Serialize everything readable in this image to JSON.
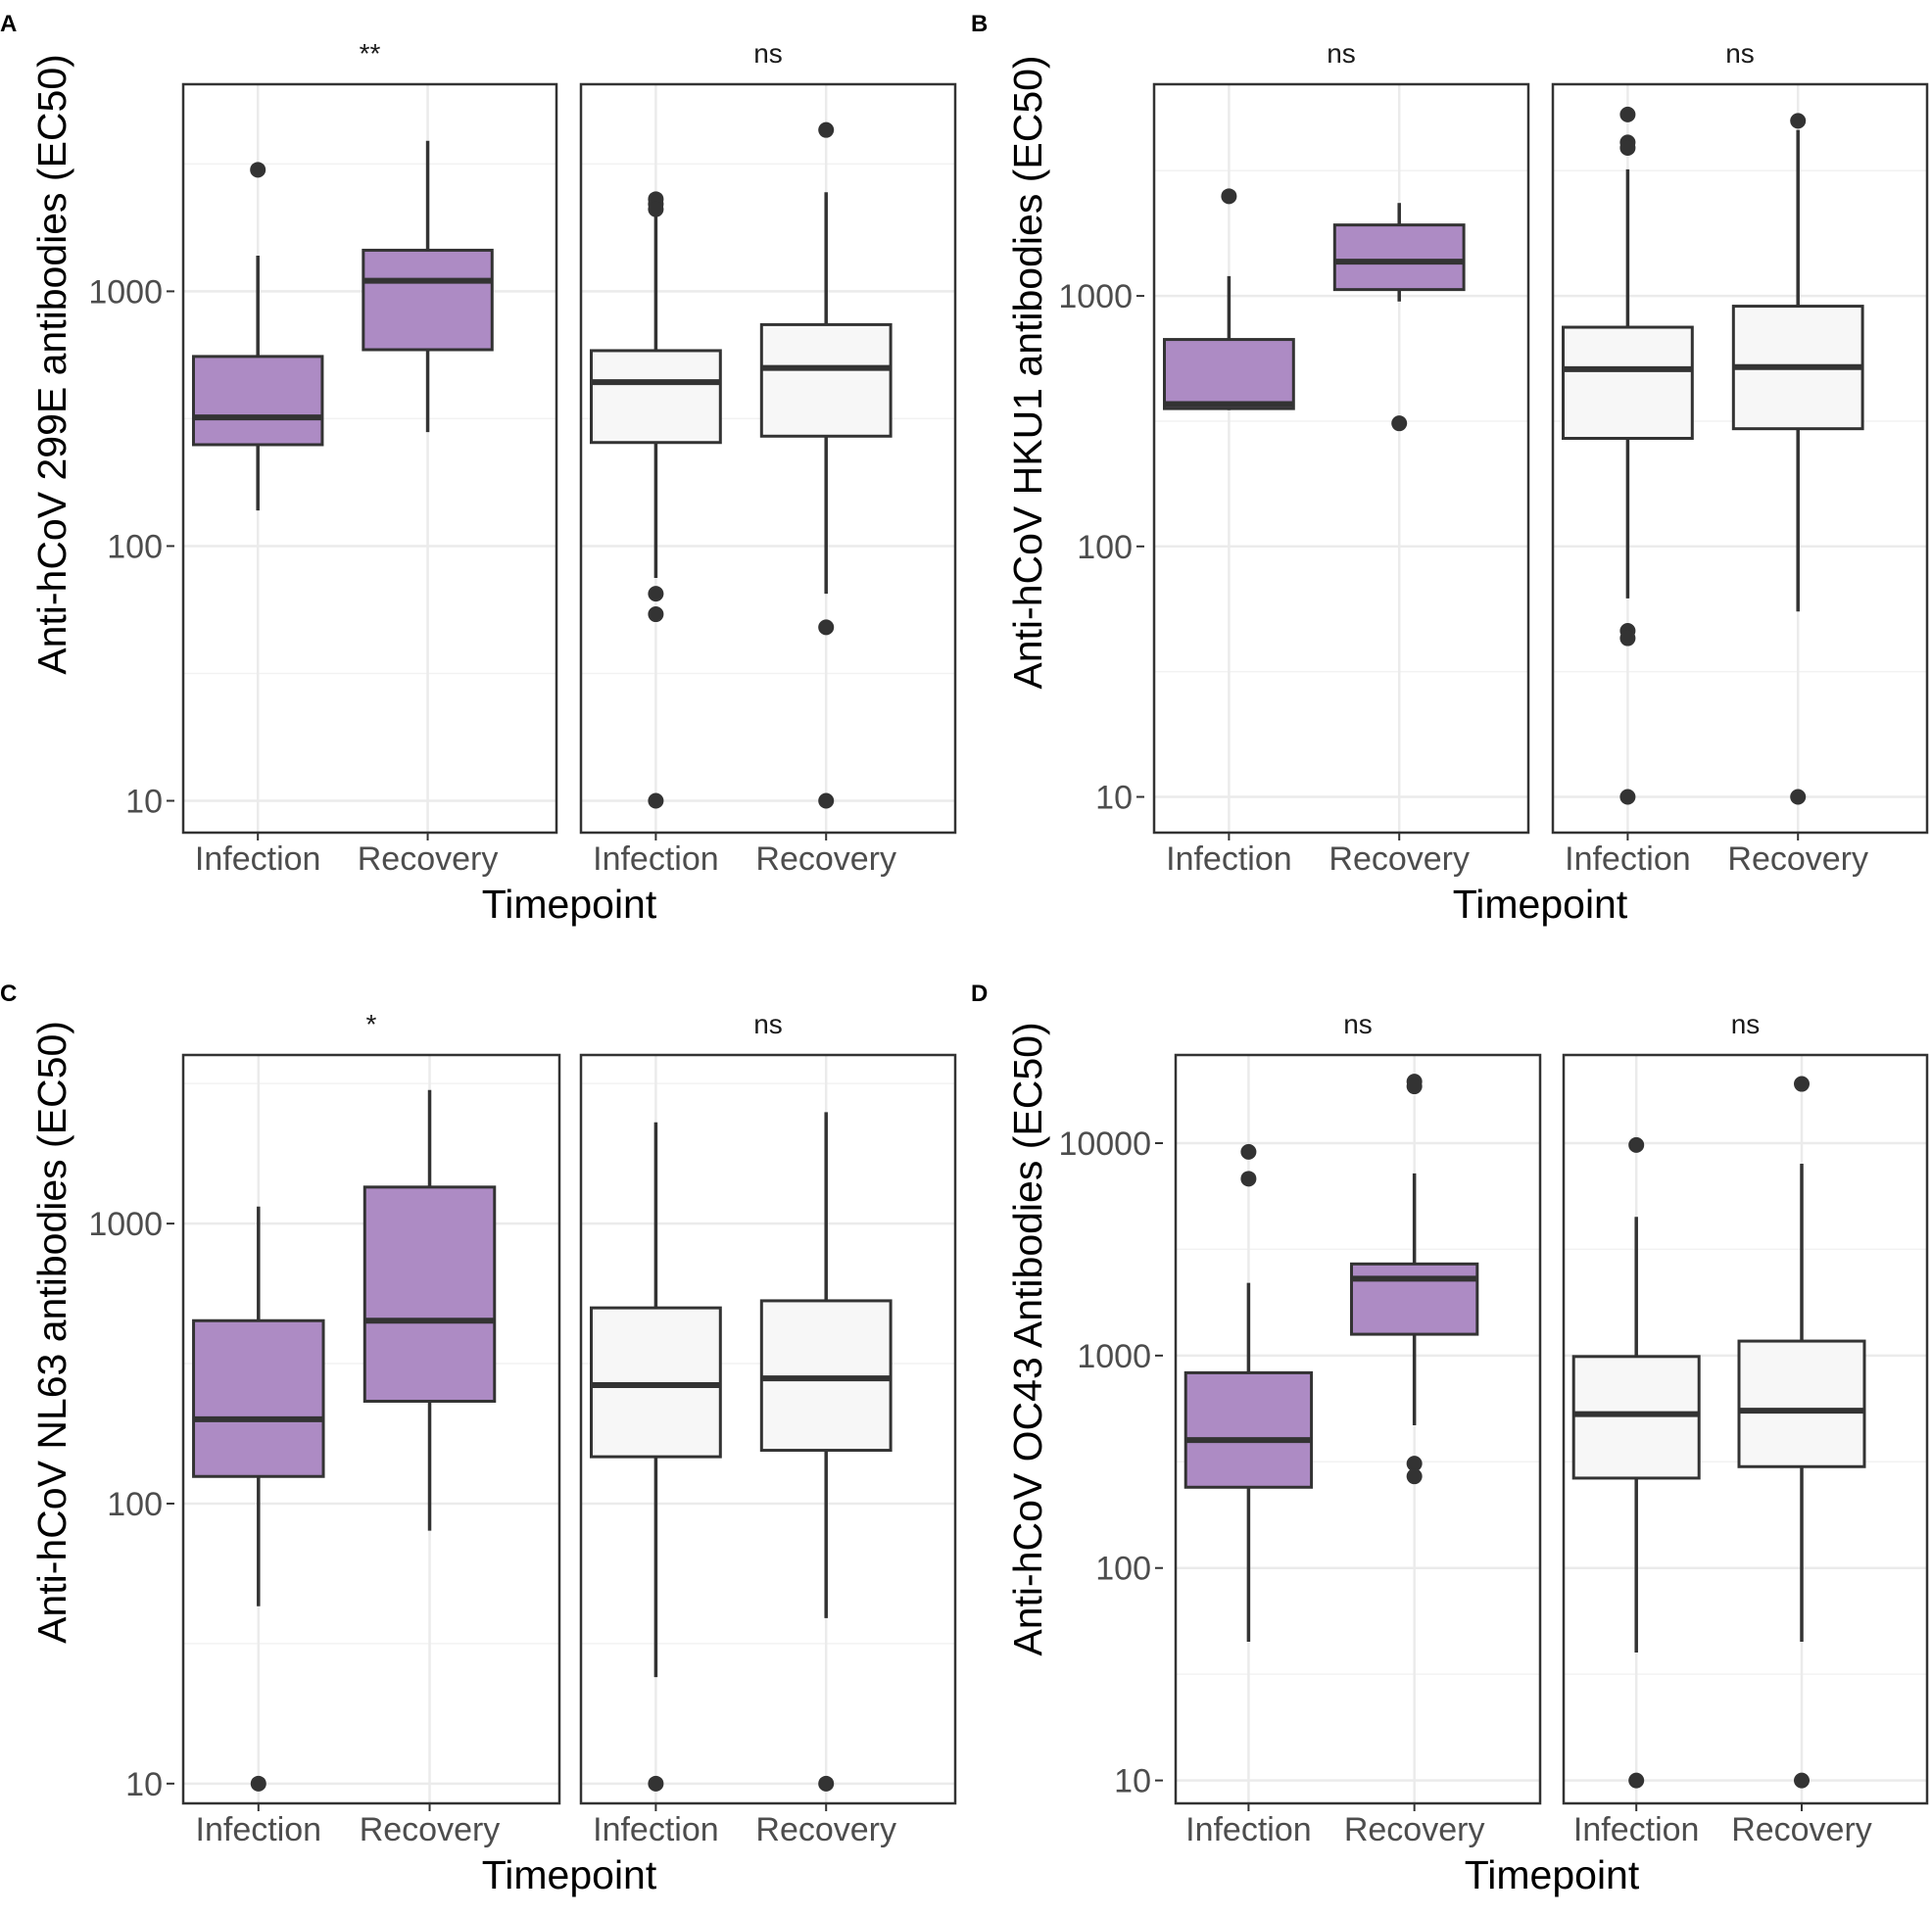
{
  "chart_data": [
    {
      "type": "box",
      "panel_label": "A",
      "ylabel": "Anti-hCoV 299E antibodies (EC50)",
      "xlabel": "Timepoint",
      "y_scale": "log10",
      "ylim": [
        7.5,
        6500
      ],
      "y_ticks": [
        10,
        100,
        1000
      ],
      "y_tick_labels": [
        "10",
        "100",
        "1000"
      ],
      "facets": [
        {
          "strip": "**",
          "groups": [
            {
              "name": "Infection",
              "fill": "#ad8bc4",
              "whisker_low": 138,
              "q1": 250,
              "median": 320,
              "q3": 555,
              "whisker_high": 1380,
              "outliers": [
                3000
              ]
            },
            {
              "name": "Recovery",
              "fill": "#ad8bc4",
              "whisker_low": 280,
              "q1": 590,
              "median": 1100,
              "q3": 1450,
              "whisker_high": 3900,
              "outliers": []
            }
          ]
        },
        {
          "strip": "ns",
          "groups": [
            {
              "name": "Infection",
              "fill": "#f7f7f7",
              "whisker_low": 75,
              "q1": 255,
              "median": 440,
              "q3": 585,
              "whisker_high": 2000,
              "outliers": [
                2200,
                2300,
                2100,
                65,
                54,
                10
              ]
            },
            {
              "name": "Recovery",
              "fill": "#f7f7f7",
              "whisker_low": 65,
              "q1": 270,
              "median": 500,
              "q3": 740,
              "whisker_high": 2450,
              "outliers": [
                4300,
                48,
                10
              ]
            }
          ]
        }
      ]
    },
    {
      "type": "box",
      "panel_label": "B",
      "ylabel": "Anti-hCoV HKU1 antibodies (EC50)",
      "xlabel": "Timepoint",
      "y_scale": "log10",
      "ylim": [
        7.2,
        7000
      ],
      "y_ticks": [
        10,
        100,
        1000
      ],
      "y_tick_labels": [
        "10",
        "100",
        "1000"
      ],
      "facets": [
        {
          "strip": "ns",
          "groups": [
            {
              "name": "Infection",
              "fill": "#ad8bc4",
              "whisker_low": 350,
              "q1": 355,
              "median": 370,
              "q3": 670,
              "whisker_high": 1200,
              "outliers": [
                2500
              ]
            },
            {
              "name": "Recovery",
              "fill": "#ad8bc4",
              "whisker_low": 950,
              "q1": 1060,
              "median": 1370,
              "q3": 1920,
              "whisker_high": 2350,
              "outliers": [
                310
              ]
            }
          ]
        },
        {
          "strip": "ns",
          "groups": [
            {
              "name": "Infection",
              "fill": "#f7f7f7",
              "whisker_low": 62,
              "q1": 270,
              "median": 510,
              "q3": 750,
              "whisker_high": 3200,
              "outliers": [
                5300,
                4100,
                3900,
                46,
                43,
                10
              ]
            },
            {
              "name": "Recovery",
              "fill": "#f7f7f7",
              "whisker_low": 55,
              "q1": 295,
              "median": 520,
              "q3": 910,
              "whisker_high": 4600,
              "outliers": [
                5000,
                10
              ]
            }
          ]
        }
      ]
    },
    {
      "type": "box",
      "panel_label": "C",
      "ylabel": "Anti-hCoV NL63 antibodies (EC50)",
      "xlabel": "Timepoint",
      "y_scale": "log10",
      "ylim": [
        8.5,
        4000
      ],
      "y_ticks": [
        10,
        100,
        1000
      ],
      "y_tick_labels": [
        "10",
        "100",
        "1000"
      ],
      "facets": [
        {
          "strip": "*",
          "groups": [
            {
              "name": "Infection",
              "fill": "#ad8bc4",
              "whisker_low": 43,
              "q1": 125,
              "median": 200,
              "q3": 450,
              "whisker_high": 1150,
              "outliers": [
                10
              ]
            },
            {
              "name": "Recovery",
              "fill": "#ad8bc4",
              "whisker_low": 80,
              "q1": 232,
              "median": 450,
              "q3": 1350,
              "whisker_high": 3000,
              "outliers": []
            }
          ]
        },
        {
          "strip": "ns",
          "groups": [
            {
              "name": "Infection",
              "fill": "#f7f7f7",
              "whisker_low": 24,
              "q1": 147,
              "median": 265,
              "q3": 500,
              "whisker_high": 2300,
              "outliers": [
                10
              ]
            },
            {
              "name": "Recovery",
              "fill": "#f7f7f7",
              "whisker_low": 39,
              "q1": 155,
              "median": 280,
              "q3": 530,
              "whisker_high": 2500,
              "outliers": [
                10
              ]
            }
          ]
        }
      ]
    },
    {
      "type": "box",
      "panel_label": "D",
      "ylabel": "Anti-hCoV OC43 Antibodies (EC50)",
      "xlabel": "Timepoint",
      "y_scale": "log10",
      "ylim": [
        7.8,
        26000
      ],
      "y_ticks": [
        10,
        100,
        1000,
        10000
      ],
      "y_tick_labels": [
        "10",
        "100",
        "1000",
        "10000"
      ],
      "facets": [
        {
          "strip": "ns",
          "groups": [
            {
              "name": "Infection",
              "fill": "#ad8bc4",
              "whisker_low": 45,
              "q1": 240,
              "median": 400,
              "q3": 830,
              "whisker_high": 2200,
              "outliers": [
                9100,
                6800
              ]
            },
            {
              "name": "Recovery",
              "fill": "#ad8bc4",
              "whisker_low": 470,
              "q1": 1260,
              "median": 2300,
              "q3": 2700,
              "whisker_high": 7200,
              "outliers": [
                19500,
                18500,
                310,
                270
              ]
            }
          ]
        },
        {
          "strip": "ns",
          "groups": [
            {
              "name": "Infection",
              "fill": "#f7f7f7",
              "whisker_low": 40,
              "q1": 265,
              "median": 530,
              "q3": 990,
              "whisker_high": 4500,
              "outliers": [
                9800,
                10
              ]
            },
            {
              "name": "Recovery",
              "fill": "#f7f7f7",
              "whisker_low": 45,
              "q1": 300,
              "median": 550,
              "q3": 1170,
              "whisker_high": 8000,
              "outliers": [
                19000,
                10
              ]
            }
          ]
        }
      ]
    }
  ]
}
